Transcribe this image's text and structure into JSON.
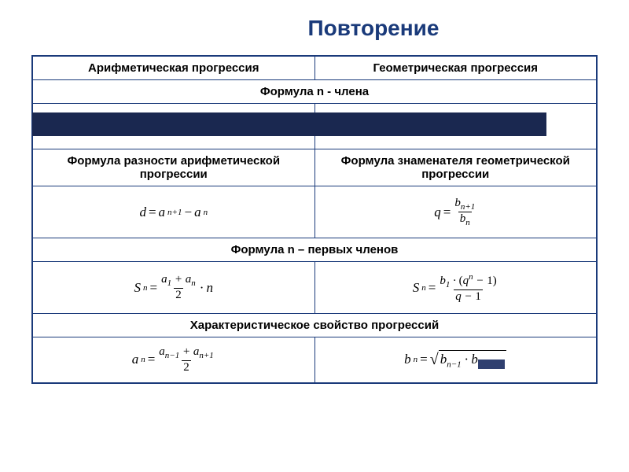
{
  "title": "Повторение",
  "headers": {
    "arith": "Арифметическая прогрессия",
    "geom": "Геометрическая прогрессия"
  },
  "rows": {
    "nth_term": "Формула n - члена",
    "diff_arith": "Формула разности арифметической прогрессии",
    "ratio_geom": "Формула знаменателя геометрической прогрессии",
    "sum_n": "Формула n – первых членов",
    "characteristic": "Характеристическое свойство прогрессий"
  },
  "colors": {
    "border": "#1a3a7a",
    "title": "#1a3a7a",
    "dark_strip": "#1a2850",
    "background": "#ffffff"
  }
}
